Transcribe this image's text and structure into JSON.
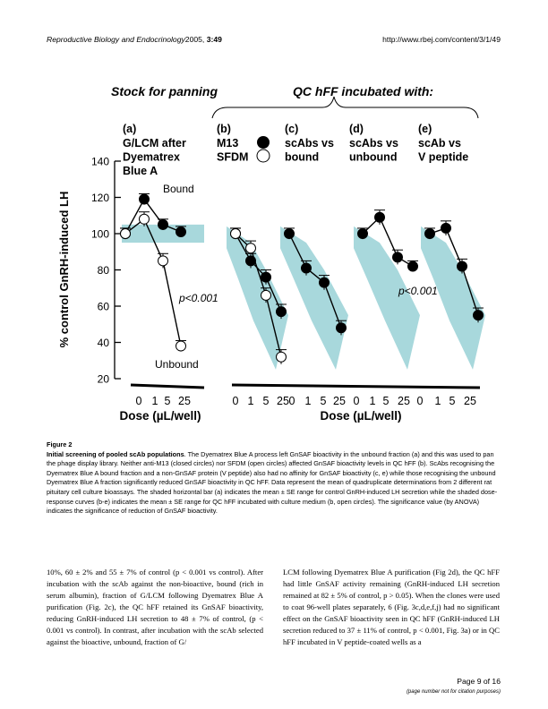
{
  "header": {
    "journal": "Reproductive Biology and Endocrinology",
    "year_volume": "2005, ",
    "volume_article": "3:49",
    "url": "http://www.rbej.com/content/3/1/49"
  },
  "figure": {
    "heading_left": "Stock for panning",
    "heading_right": "QC hFF incubated with:",
    "panels": [
      {
        "letter": "(a)",
        "lines": [
          "G/LCM after",
          "Dyematrex",
          "Blue A"
        ]
      },
      {
        "letter": "(b)",
        "lines": [
          "M13",
          "SFDM"
        ]
      },
      {
        "letter": "(c)",
        "lines": [
          "scAbs vs",
          "bound"
        ]
      },
      {
        "letter": "(d)",
        "lines": [
          "scAbs vs",
          "unbound"
        ]
      },
      {
        "letter": "(e)",
        "lines": [
          "scAb vs",
          "V peptide"
        ]
      }
    ],
    "labels": {
      "bound": "Bound",
      "unbound": "Unbound",
      "p_a": "p<0.001",
      "p_d": "p<0.001"
    },
    "x_ticks": [
      "0",
      "1",
      "5",
      "25"
    ],
    "x_label": "Dose (µL/well)",
    "y_label": "% control GnRH-induced LH",
    "shade_color": "#a8d8dc"
  },
  "chart_data": {
    "type": "line",
    "ylabel": "% control GnRH-induced LH",
    "xlabel": "Dose (µL/well)",
    "ylim": [
      20,
      140
    ],
    "yticks": [
      20,
      40,
      60,
      80,
      100,
      120,
      140
    ],
    "x": [
      "0",
      "1",
      "5",
      "25"
    ],
    "control_range": [
      95,
      105
    ],
    "panels": [
      {
        "panel": "(a)",
        "series": [
          {
            "name": "Bound",
            "fill": "closed",
            "values": [
              100,
              119,
              105,
              101
            ],
            "errors": [
              3,
              3,
              3,
              3
            ]
          },
          {
            "name": "Unbound",
            "fill": "open",
            "values": [
              100,
              108,
              85,
              38
            ],
            "errors": [
              3,
              4,
              4,
              3
            ]
          }
        ]
      },
      {
        "panel": "(b)",
        "band_lower": [
          92,
          75,
          52,
          25
        ],
        "band_upper": [
          104,
          95,
          80,
          55
        ],
        "series": [
          {
            "name": "M13",
            "fill": "closed",
            "values": [
              100,
              85,
              76,
              57
            ],
            "errors": [
              3,
              4,
              4,
              4
            ]
          },
          {
            "name": "SFDM",
            "fill": "open",
            "values": [
              100,
              92,
              66,
              32
            ],
            "errors": [
              3,
              4,
              4,
              4
            ]
          }
        ]
      },
      {
        "panel": "(c)",
        "band_lower": [
          92,
          75,
          52,
          25
        ],
        "band_upper": [
          104,
          95,
          80,
          55
        ],
        "series": [
          {
            "name": "scAbs vs bound",
            "fill": "closed",
            "values": [
              100,
              81,
              73,
              48
            ],
            "errors": [
              3,
              4,
              4,
              4
            ]
          }
        ]
      },
      {
        "panel": "(d)",
        "band_lower": [
          92,
          75,
          52,
          25
        ],
        "band_upper": [
          104,
          95,
          80,
          55
        ],
        "series": [
          {
            "name": "scAbs vs unbound",
            "fill": "closed",
            "values": [
              100,
              109,
              87,
              82
            ],
            "errors": [
              3,
              4,
              4,
              3
            ]
          }
        ]
      },
      {
        "panel": "(e)",
        "band_lower": [
          92,
          75,
          52,
          25
        ],
        "band_upper": [
          104,
          95,
          80,
          55
        ],
        "series": [
          {
            "name": "scAb vs V peptide",
            "fill": "closed",
            "values": [
              100,
              103,
              82,
              55
            ],
            "errors": [
              3,
              4,
              4,
              4
            ]
          }
        ]
      }
    ]
  },
  "caption": {
    "label": "Figure 2",
    "title": "Initial screening of pooled scAb populations",
    "text": ". The Dyematrex Blue A process left GnSAF bioactivity in the unbound fraction (a) and this was used to pan the phage display library. Neither anti-M13 (closed circles) nor SFDM (open circles) affected GnSAF bioactivity levels in QC hFF (b). ScAbs recognising the Dyematrex Blue A bound fraction and a non-GnSAF protein (V peptide) also had no affinity for GnSAF bioactivity (c, e) while those recognising the unbound Dyematrex Blue A fraction significantly reduced GnSAF bioactivity in QC hFF. Data represent the mean of quadruplicate determinations from 2 different rat pituitary cell culture bioassays. The shaded horizontal bar (a) indicates the mean ± SE range for control GnRH-induced LH secretion while the shaded dose-response curves (b-e) indicates the mean ± SE range for QC hFF incubated with culture medium (b, open circles). The significance value (by ANOVA) indicates the significance of reduction of GnSAF bioactivity."
  },
  "body": {
    "left": "10%, 60 ± 2% and 55 ± 7% of control (p < 0.001 vs control). After incubation with the scAb against the non-bioactive, bound (rich in serum albumin), fraction of G/LCM following Dyematrex Blue A purification (Fig. 2c), the QC hFF retained its GnSAF bioactivity, reducing GnRH-induced LH secretion to 48 ± 7% of control, (p < 0.001 vs control). In contrast, after incubation with the scAb selected against the bioactive, unbound, fraction of G/",
    "right": "LCM following Dyematrex Blue A purification (Fig 2d), the QC hFF had little GnSAF activity remaining (GnRH-induced LH secretion remained at 82 ± 5% of control, p > 0.05). When the clones were used to coat 96-well plates separately, 6 (Fig. 3c,d,e,f,j) had no significant effect on the GnSAF bioactivity seen in QC hFF (GnRH-induced LH secretion reduced to 37 ± 11% of control, p < 0.001, Fig. 3a) or in QC hFF incubated in V peptide-coated wells as a"
  },
  "footer": {
    "page": "Page 9 of 16",
    "note": "(page number not for citation purposes)"
  }
}
